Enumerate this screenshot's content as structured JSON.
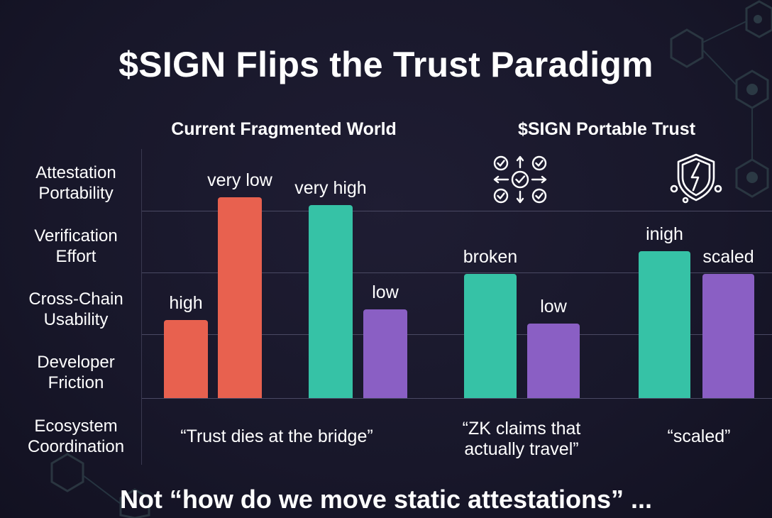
{
  "title": "$SIGN Flips the Trust Paradigm",
  "groups": [
    "Current Fragmented World",
    "$SIGN Portable Trust"
  ],
  "rows": [
    [
      "Attestation",
      "Portability"
    ],
    [
      "Verification",
      "Effort"
    ],
    [
      "Cross-Chain",
      "Usability"
    ],
    [
      "Developer",
      "Friction"
    ],
    [
      "Ecosystem",
      "Coordination"
    ]
  ],
  "quotes": [
    [
      "“Trust dies at the bridge”"
    ],
    [
      "“ZK claims that",
      "actually travel”"
    ],
    [
      "“scaled”"
    ]
  ],
  "bottom_text": "Not “how do we move static attestations” ...",
  "icons": [
    "checkmark-network-icon",
    "shield-lightning-icon"
  ],
  "colors": {
    "background": "#17162a",
    "red": "#e8614f",
    "teal": "#36c2a6",
    "purple": "#8a5fc4",
    "grid": "#4a4963"
  },
  "chart_data": {
    "type": "bar",
    "grouping": "unlabeled",
    "note_scale": "bar heights estimated on a 0–1 scale; no numeric axis is printed",
    "ylim": [
      0,
      1
    ],
    "bars": [
      {
        "label": "high",
        "color": "red",
        "value": 0.39
      },
      {
        "label": "very low",
        "color": "red",
        "value": 1.0
      },
      {
        "label": "very high",
        "color": "teal",
        "value": 0.96
      },
      {
        "label": "low",
        "color": "purple",
        "value": 0.44
      },
      {
        "label": "broken",
        "color": "teal",
        "value": 0.62
      },
      {
        "label": "low",
        "color": "purple",
        "value": 0.37
      },
      {
        "label": "inigh",
        "color": "teal",
        "value": 0.73
      },
      {
        "label": "scaled",
        "color": "purple",
        "value": 0.62
      }
    ]
  }
}
